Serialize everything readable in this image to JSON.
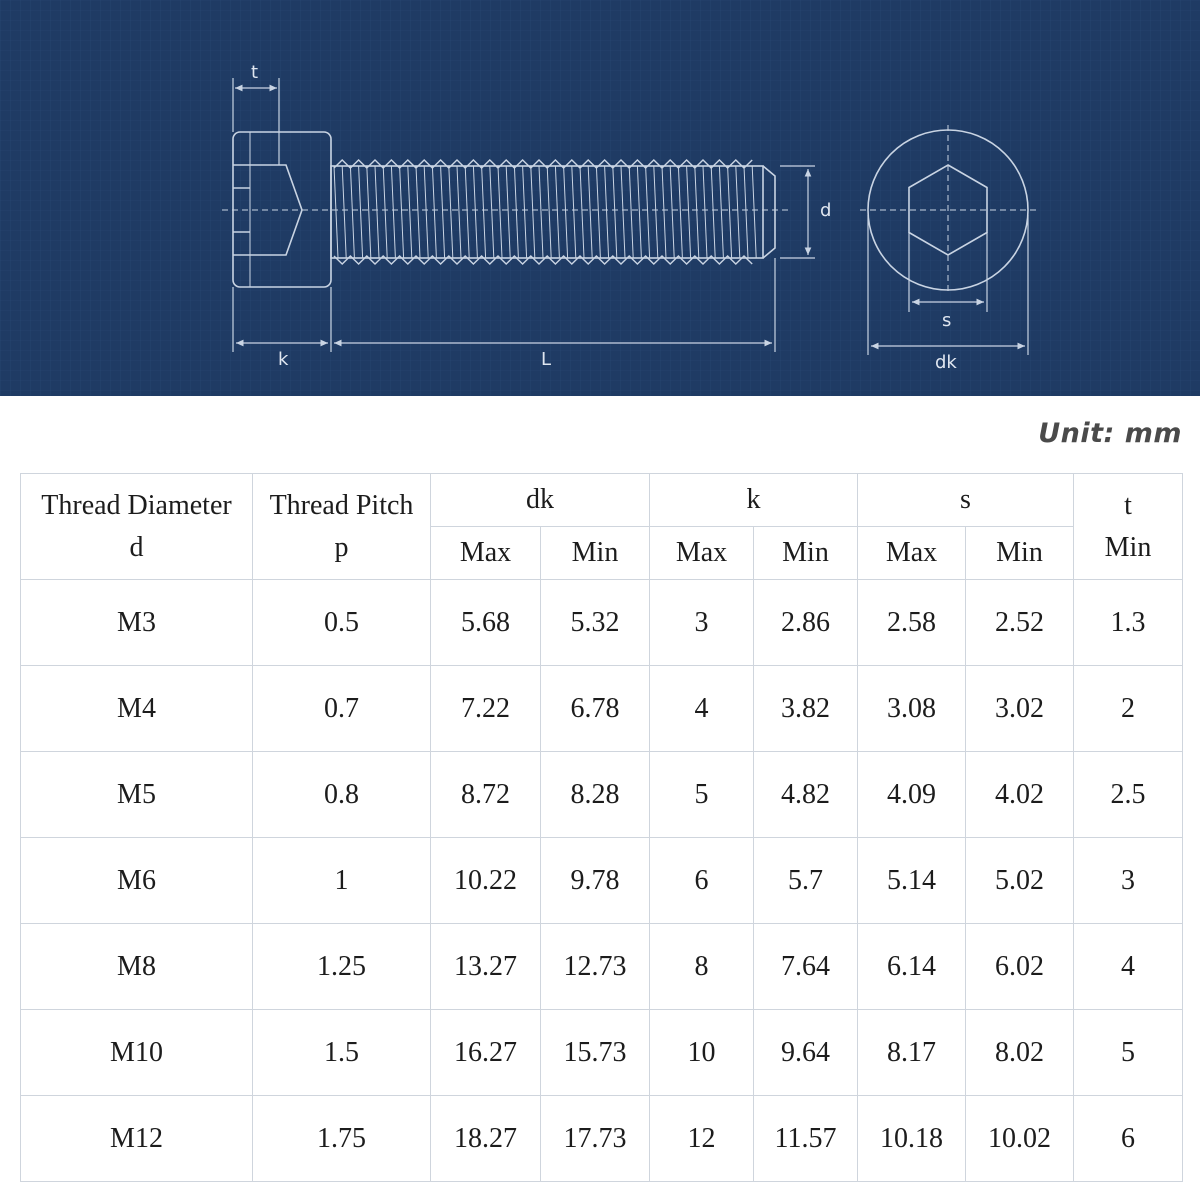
{
  "diagram": {
    "labels": {
      "t": "t",
      "k": "k",
      "L": "L",
      "d": "d",
      "s": "s",
      "dk": "dk"
    },
    "colors": {
      "background": "#1f3b64",
      "grid": "#2b4a75",
      "line": "#c9d4e3"
    }
  },
  "unit": "Unit: mm",
  "table": {
    "headers": {
      "thread_diameter": [
        "Thread Diameter",
        "d"
      ],
      "thread_pitch": [
        "Thread Pitch",
        "p"
      ],
      "dk": "dk",
      "k": "k",
      "s": "s",
      "t": [
        "t",
        "Min"
      ],
      "max": "Max",
      "min": "Min"
    },
    "rows": [
      [
        "M3",
        "0.5",
        "5.68",
        "5.32",
        "3",
        "2.86",
        "2.58",
        "2.52",
        "1.3"
      ],
      [
        "M4",
        "0.7",
        "7.22",
        "6.78",
        "4",
        "3.82",
        "3.08",
        "3.02",
        "2"
      ],
      [
        "M5",
        "0.8",
        "8.72",
        "8.28",
        "5",
        "4.82",
        "4.09",
        "4.02",
        "2.5"
      ],
      [
        "M6",
        "1",
        "10.22",
        "9.78",
        "6",
        "5.7",
        "5.14",
        "5.02",
        "3"
      ],
      [
        "M8",
        "1.25",
        "13.27",
        "12.73",
        "8",
        "7.64",
        "6.14",
        "6.02",
        "4"
      ],
      [
        "M10",
        "1.5",
        "16.27",
        "15.73",
        "10",
        "9.64",
        "8.17",
        "8.02",
        "5"
      ],
      [
        "M12",
        "1.75",
        "18.27",
        "17.73",
        "12",
        "11.57",
        "10.18",
        "10.02",
        "6"
      ]
    ]
  }
}
